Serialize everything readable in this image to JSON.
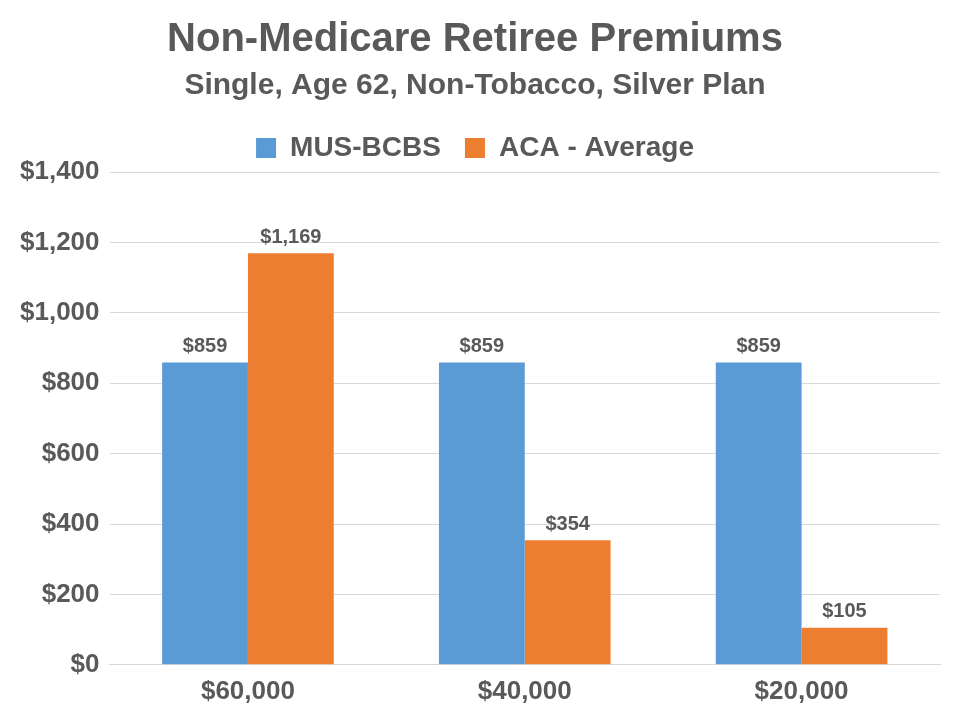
{
  "chart_data": {
    "type": "bar",
    "title": "Non-Medicare Retiree Premiums",
    "subtitle": "Single, Age 62, Non-Tobacco, Silver Plan",
    "categories": [
      "$60,000",
      "$40,000",
      "$20,000"
    ],
    "series": [
      {
        "name": "MUS-BCBS",
        "color": "#5B9BD5",
        "values": [
          859,
          859,
          859
        ],
        "value_labels": [
          "$859",
          "$859",
          "$859"
        ]
      },
      {
        "name": "ACA - Average",
        "color": "#ED7D31",
        "values": [
          1169,
          354,
          105
        ],
        "value_labels": [
          "$1,169",
          "$354",
          "$105"
        ]
      }
    ],
    "ylim": [
      0,
      1400
    ],
    "yticks": [
      {
        "value": 0,
        "label": "$0"
      },
      {
        "value": 200,
        "label": "$200"
      },
      {
        "value": 400,
        "label": "$400"
      },
      {
        "value": 600,
        "label": "$600"
      },
      {
        "value": 800,
        "label": "$800"
      },
      {
        "value": 1000,
        "label": "$1,000"
      },
      {
        "value": 1200,
        "label": "$1,200"
      },
      {
        "value": 1400,
        "label": "$1,400"
      }
    ],
    "grid": true,
    "legend": "top",
    "data_labels": true
  }
}
